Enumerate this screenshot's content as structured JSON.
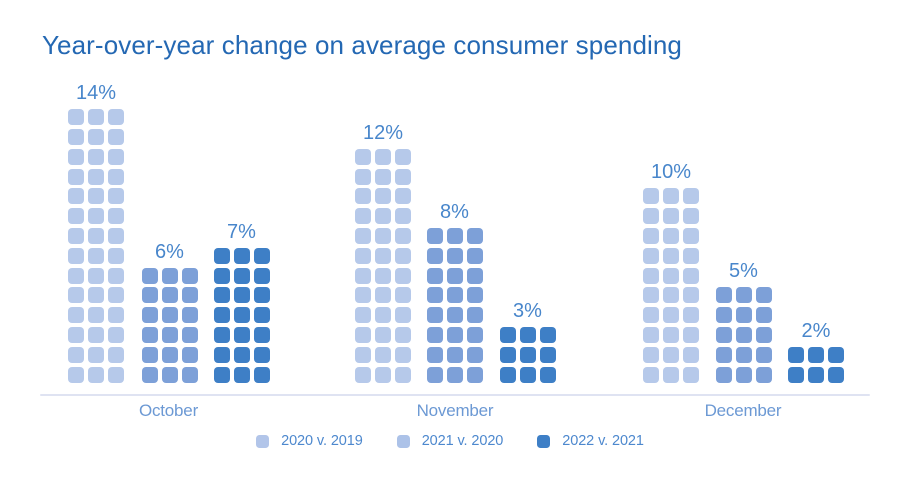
{
  "chart_data": {
    "type": "waffle-bar",
    "title": "Year-over-year change on average consumer spending",
    "categories": [
      "October",
      "November",
      "December"
    ],
    "series": [
      {
        "name": "2020 v. 2019",
        "values": [
          14,
          12,
          10
        ],
        "color": "#b6c9ea",
        "legend_color": "#b2c5e9"
      },
      {
        "name": "2021 v. 2020",
        "values": [
          6,
          8,
          5
        ],
        "color": "#7da0d8",
        "legend_color": "#acc2e8"
      },
      {
        "name": "2022 v. 2021",
        "values": [
          7,
          3,
          2
        ],
        "color": "#3e7fc6",
        "legend_color": "#3e7fc6"
      }
    ],
    "value_label_suffix": "%",
    "value_labels": [
      [
        "14%",
        "12%",
        "10%"
      ],
      [
        "6%",
        "8%",
        "5%"
      ],
      [
        "7%",
        "3%",
        "2%"
      ]
    ],
    "title_color": "#2468b3",
    "value_label_color": "#4886cb",
    "category_label_color": "#6c99d4",
    "legend_text_color": "#4d88ce",
    "axis_line_color": "#dfe3f2",
    "background": "#ffffff",
    "legend_position": "bottom-center",
    "grid": false
  }
}
